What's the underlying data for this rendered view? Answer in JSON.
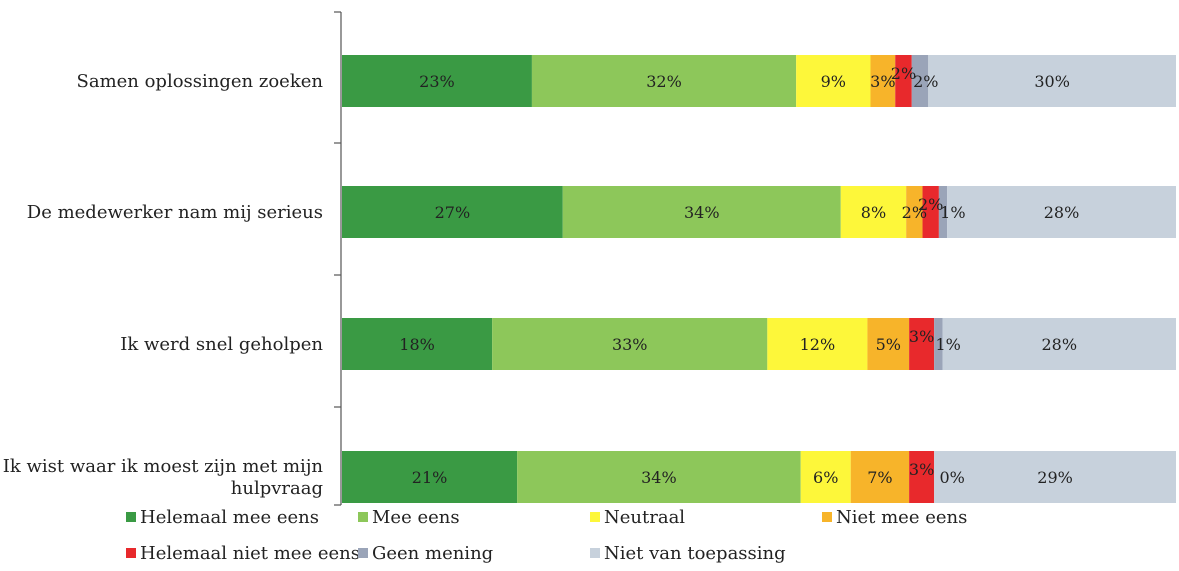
{
  "chart_data": {
    "type": "bar",
    "orientation": "horizontal",
    "stacked": true,
    "categories": [
      "Samen oplossingen zoeken",
      "De medewerker nam mij serieus",
      "Ik werd snel geholpen",
      "Ik wist waar ik moest zijn met mijn hulpvraag"
    ],
    "category_lines": [
      [
        "Samen oplossingen zoeken"
      ],
      [
        "De medewerker nam mij serieus"
      ],
      [
        "Ik werd snel geholpen"
      ],
      [
        "Ik wist waar ik moest zijn met mijn",
        "hulpvraag"
      ]
    ],
    "series": [
      {
        "name": "Helemaal mee eens",
        "color": "#3a9a44",
        "values": [
          23,
          27,
          18,
          21
        ]
      },
      {
        "name": "Mee eens",
        "color": "#8dc75a",
        "values": [
          32,
          34,
          33,
          34
        ]
      },
      {
        "name": "Neutraal",
        "color": "#fdf73a",
        "values": [
          9,
          8,
          12,
          6
        ]
      },
      {
        "name": "Niet mee eens",
        "color": "#f7b42a",
        "values": [
          3,
          2,
          5,
          7
        ]
      },
      {
        "name": "Helemaal niet mee eens",
        "color": "#e8292c",
        "values": [
          2,
          2,
          3,
          3
        ]
      },
      {
        "name": "Geen mening",
        "color": "#9aa4b8",
        "values": [
          2,
          1,
          1,
          0
        ]
      },
      {
        "name": "Niet van toepassing",
        "color": "#c7d1dc",
        "values": [
          30,
          28,
          28,
          29
        ]
      }
    ],
    "value_suffix": "%",
    "legend_placement": "bottom",
    "grid": false
  }
}
